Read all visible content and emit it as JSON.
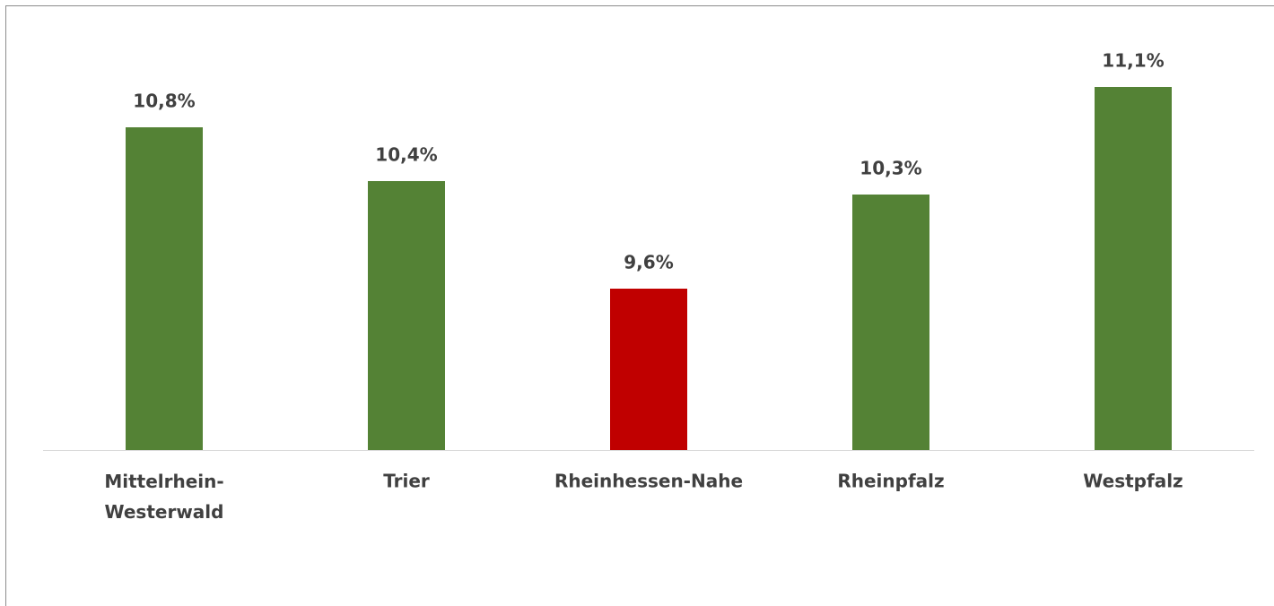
{
  "chart_data": {
    "type": "bar",
    "categories": [
      "Mittelrhein-Westerwald",
      "Trier",
      "Rheinhessen-Nahe",
      "Rheinpfalz",
      "Westpfalz"
    ],
    "values": [
      10.8,
      10.4,
      9.6,
      10.3,
      11.1
    ],
    "value_labels": [
      "10,8%",
      "10,4%",
      "9,6%",
      "10,3%",
      "11,1%"
    ],
    "colors": [
      "#548235",
      "#548235",
      "#c00000",
      "#548235",
      "#548235"
    ],
    "ylim": [
      8.4,
      11.6
    ]
  }
}
